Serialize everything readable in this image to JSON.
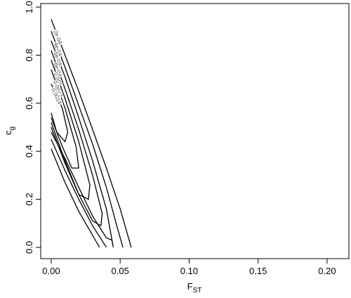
{
  "chart_data": {
    "type": "contour",
    "x_label": "F",
    "x_label_sub": "ST",
    "y_label": "c",
    "y_label_sub": "g",
    "xlim": [
      -0.0076,
      0.2158
    ],
    "ylim": [
      -0.047,
      1.015
    ],
    "xticks": [
      {
        "value": 0,
        "label": "0.00"
      },
      0.05,
      {
        "value": 0.1,
        "label": "0.10"
      },
      0.15,
      {
        "value": 0.2,
        "label": "0.20"
      }
    ],
    "yticks": [
      {
        "value": 0,
        "label": "0.0"
      },
      0.2,
      0.4,
      0.6,
      0.8,
      {
        "value": 1,
        "label": "1.0"
      }
    ],
    "color": "#000000",
    "contours": [
      {
        "level": {
          "value": 0.0002,
          "label": "2e-04"
        },
        "x": [
          0,
          0.01,
          0.02,
          0.03,
          0.04,
          0.05,
          0.058,
          null,
          0.035,
          0.03,
          0.02,
          0.01,
          0
        ],
        "y": [
          0.95,
          0.8,
          0.65,
          0.49,
          0.33,
          0.16,
          0.0,
          null,
          0.0,
          0.05,
          0.15,
          0.27,
          0.41
        ]
      },
      {
        "level": {
          "value": 0.0004,
          "label": "4e-04"
        },
        "x": [
          0,
          0.01,
          0.02,
          0.03,
          0.04,
          0.048,
          0.052,
          null,
          0.04,
          0.03,
          0.02,
          0.01,
          0
        ],
        "y": [
          0.9,
          0.75,
          0.59,
          0.43,
          0.25,
          0.08,
          0.0,
          null,
          0.0,
          0.09,
          0.2,
          0.32,
          0.45
        ]
      },
      {
        "level": {
          "value": 0.0006,
          "label": "6e-04"
        },
        "x": [
          0,
          0.01,
          0.02,
          0.03,
          0.04,
          0.045,
          0.044,
          0.04,
          0.03,
          0.02,
          0.01,
          0
        ],
        "y": [
          0.86,
          0.71,
          0.54,
          0.36,
          0.16,
          0.0,
          0.03,
          0.04,
          0.13,
          0.25,
          0.37,
          0.48
        ]
      },
      {
        "level": {
          "value": 0.0008,
          "label": "8e-04"
        },
        "x": [
          0,
          0.01,
          0.02,
          0.03,
          0.037,
          0.036,
          0.03,
          0.02,
          0.01,
          0
        ],
        "y": [
          0.82,
          0.66,
          0.49,
          0.3,
          0.14,
          0.09,
          0.11,
          0.22,
          0.35,
          0.5
        ]
      },
      {
        "level": {
          "value": 0.001,
          "label": "0.001"
        },
        "x": [
          0,
          0.01,
          0.02,
          0.028,
          0.027,
          0.02,
          0.01,
          0
        ],
        "y": [
          0.78,
          0.62,
          0.44,
          0.26,
          0.2,
          0.22,
          0.36,
          0.52
        ]
      },
      {
        "level": {
          "value": 0.0012,
          "label": "0.0012"
        },
        "x": [
          0,
          0.01,
          0.018,
          0.02,
          0.015,
          0.008,
          0
        ],
        "y": [
          0.74,
          0.58,
          0.42,
          0.33,
          0.33,
          0.42,
          0.54
        ]
      },
      {
        "level": {
          "value": 0.0014,
          "label": "0.0014"
        },
        "x": [
          0,
          0.008,
          0.012,
          0.01,
          0.004,
          0
        ],
        "y": [
          0.68,
          0.58,
          0.48,
          0.44,
          0.48,
          0.56
        ]
      }
    ]
  }
}
